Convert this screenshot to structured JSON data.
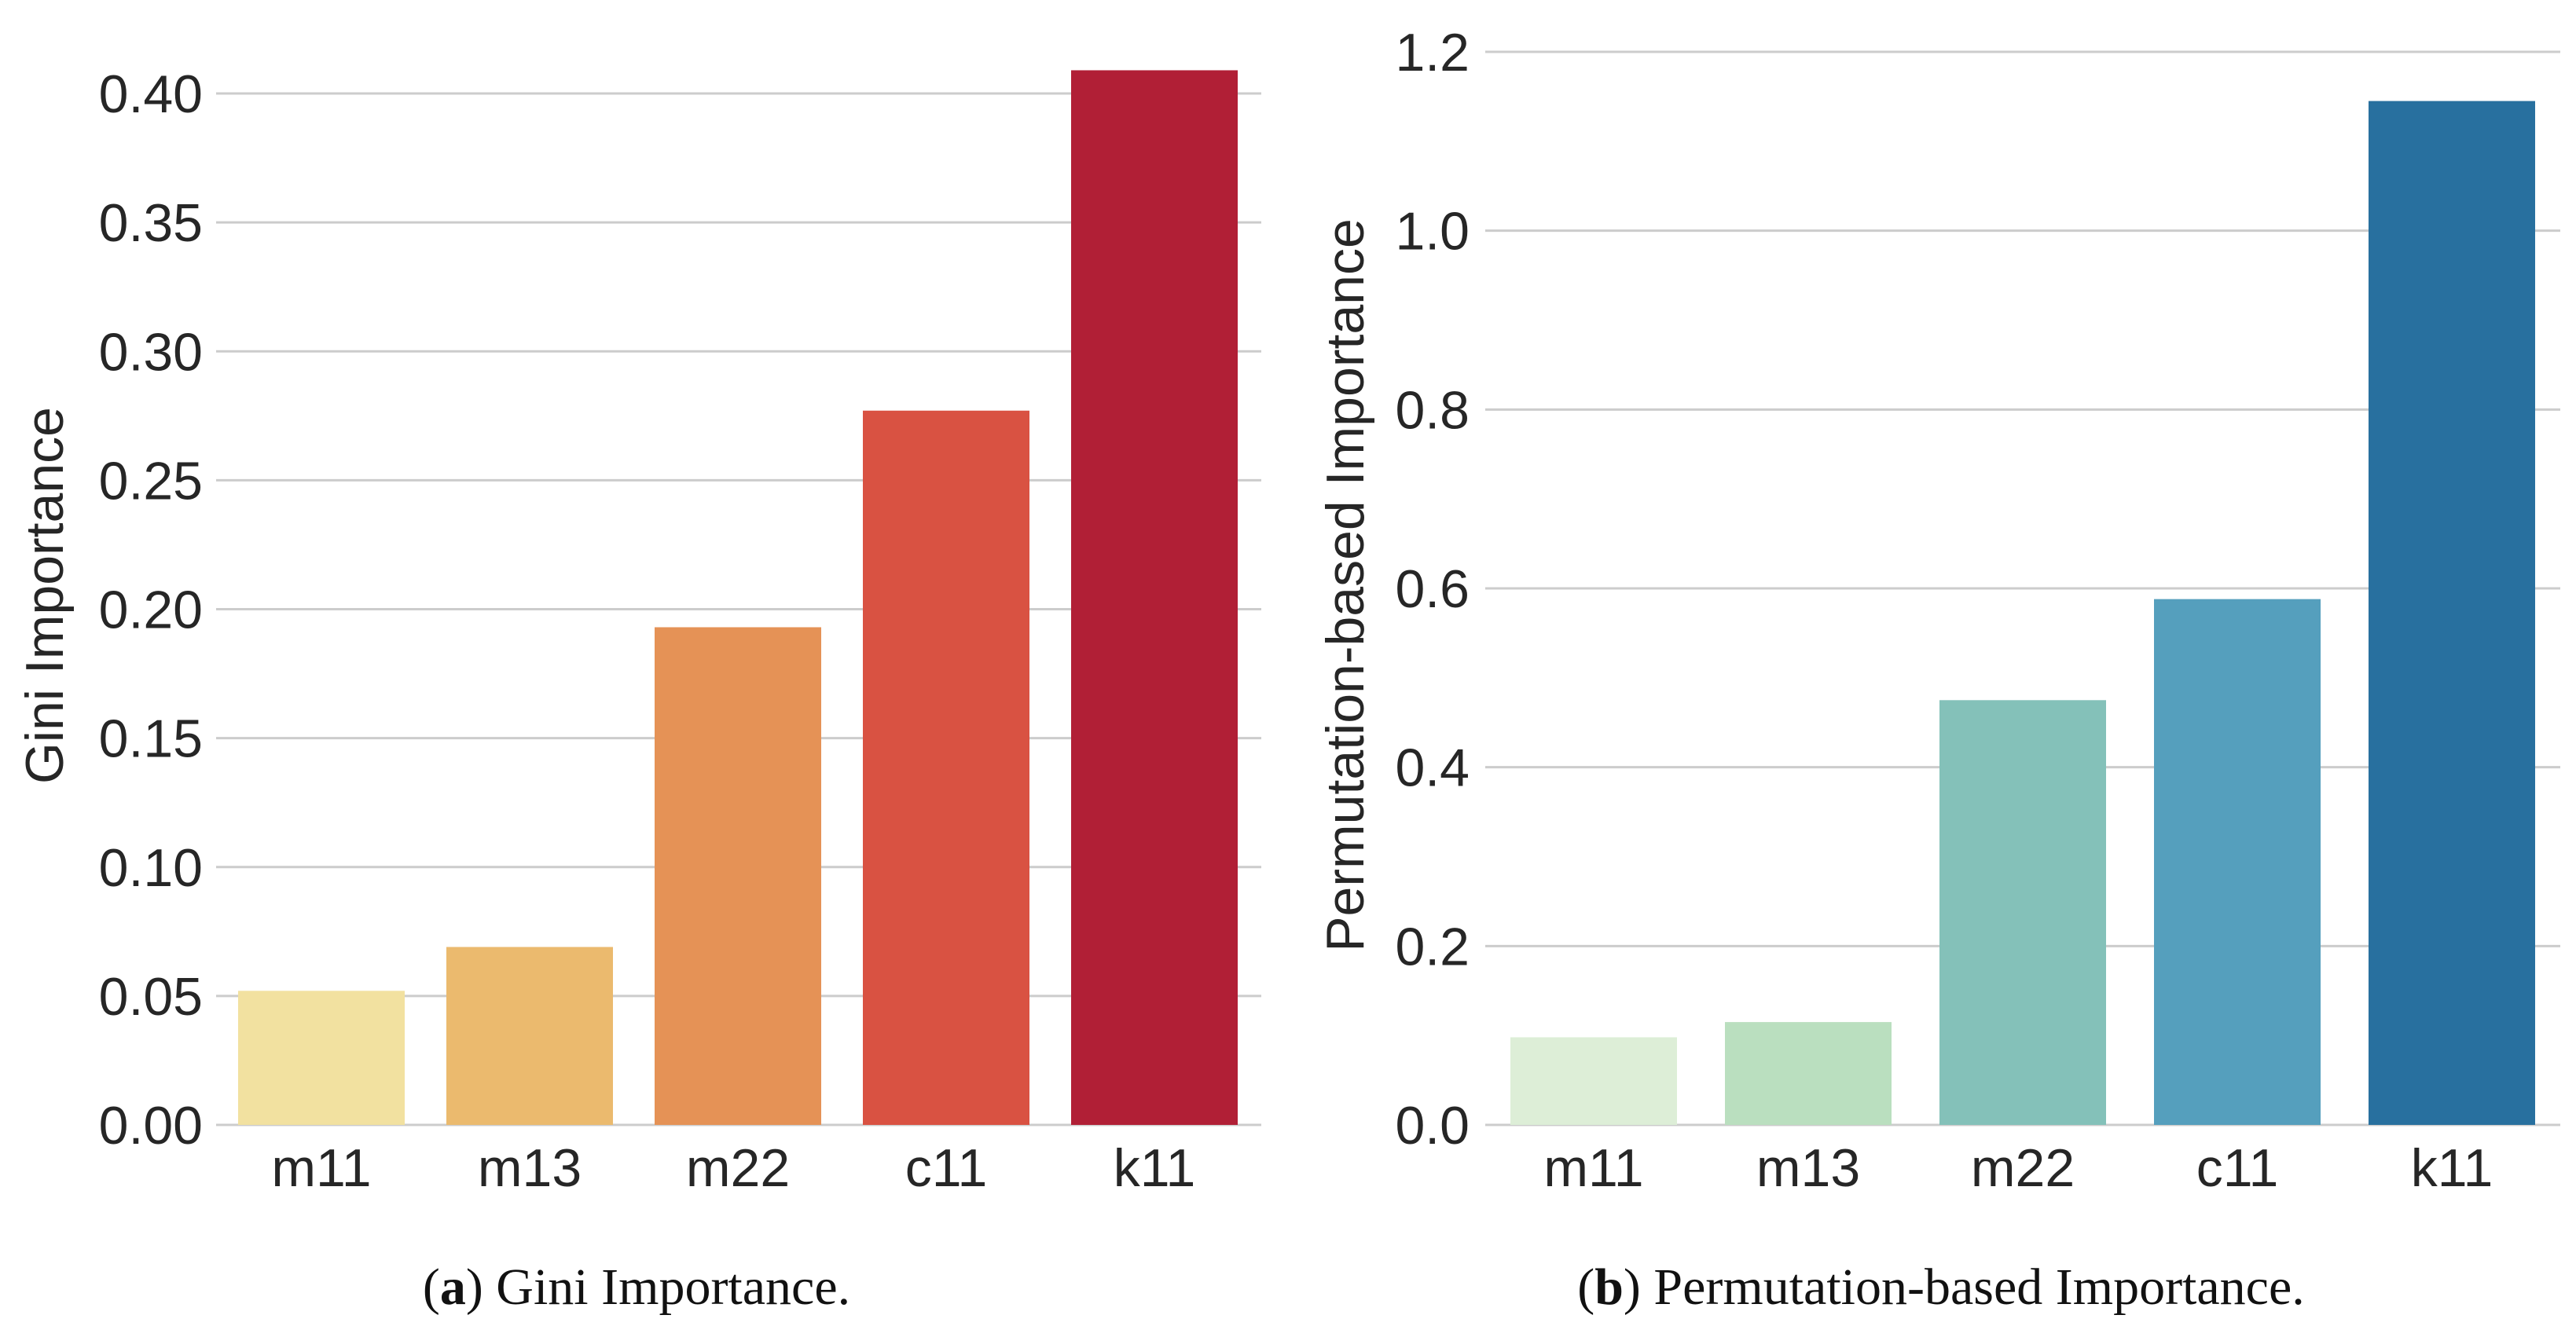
{
  "chart_data": [
    {
      "type": "bar",
      "title": "",
      "xlabel": "",
      "ylabel": "Gini Importance",
      "categories": [
        "m11",
        "m13",
        "m22",
        "c11",
        "k11"
      ],
      "values": [
        0.052,
        0.069,
        0.193,
        0.277,
        0.409
      ],
      "colors": [
        "#f2e1a0",
        "#ebba6e",
        "#e59256",
        "#d95242",
        "#b11f36"
      ],
      "ylim": [
        0,
        0.41
      ],
      "yticks": [
        0.0,
        0.05,
        0.1,
        0.15,
        0.2,
        0.25,
        0.3,
        0.35,
        0.4
      ],
      "ytick_labels": [
        "0.00",
        "0.05",
        "0.10",
        "0.15",
        "0.20",
        "0.25",
        "0.30",
        "0.35",
        "0.40"
      ],
      "grid": true,
      "caption_tag": "a",
      "caption_text": " Gini Importance.",
      "caption_open": "(",
      "caption_close": ")"
    },
    {
      "type": "bar",
      "title": "",
      "xlabel": "",
      "ylabel": "Permutation-based Importance",
      "categories": [
        "m11",
        "m13",
        "m22",
        "c11",
        "k11"
      ],
      "values": [
        0.098,
        0.115,
        0.475,
        0.588,
        1.145
      ],
      "colors": [
        "#ddeed7",
        "#badfbf",
        "#84c1b9",
        "#559fbd",
        "#28709f"
      ],
      "ylim": [
        0,
        1.2
      ],
      "yticks": [
        0.0,
        0.2,
        0.4,
        0.6,
        0.8,
        1.0,
        1.2
      ],
      "ytick_labels": [
        "0.0",
        "0.2",
        "0.4",
        "0.6",
        "0.8",
        "1.0",
        "1.2"
      ],
      "grid": true,
      "caption_tag": "b",
      "caption_text": " Permutation-based Importance.",
      "caption_open": "(",
      "caption_close": ")"
    }
  ]
}
